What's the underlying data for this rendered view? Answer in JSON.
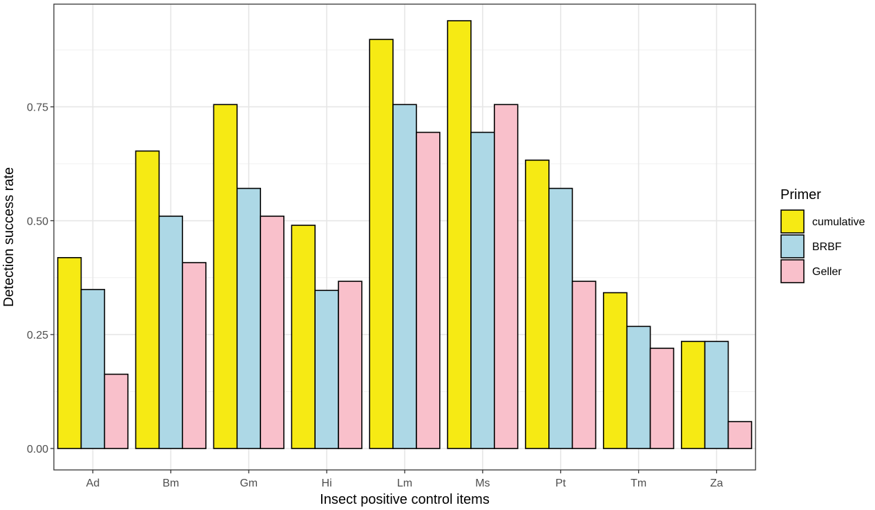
{
  "chart_data": {
    "type": "bar",
    "xlabel": "Insect positive control items",
    "ylabel": "Detection success rate",
    "categories": [
      "Ad",
      "Bm",
      "Gm",
      "Hi",
      "Lm",
      "Ms",
      "Pt",
      "Tm",
      "Za"
    ],
    "series": [
      {
        "name": "cumulative",
        "color": "#f6ea14",
        "values": [
          0.419,
          0.653,
          0.755,
          0.49,
          0.898,
          0.939,
          0.633,
          0.342,
          0.235
        ]
      },
      {
        "name": "BRBF",
        "color": "#add8e6",
        "values": [
          0.349,
          0.51,
          0.571,
          0.347,
          0.755,
          0.694,
          0.571,
          0.268,
          0.235
        ]
      },
      {
        "name": "Geller",
        "color": "#f9c0cb",
        "values": [
          0.163,
          0.408,
          0.51,
          0.367,
          0.694,
          0.755,
          0.367,
          0.22,
          0.059
        ]
      }
    ],
    "ylim": [
      0,
      0.98
    ],
    "yticks": [
      "0.00",
      "0.25",
      "0.50",
      "0.75"
    ],
    "grid": true,
    "legend": {
      "title": "Primer",
      "position": "right"
    }
  }
}
